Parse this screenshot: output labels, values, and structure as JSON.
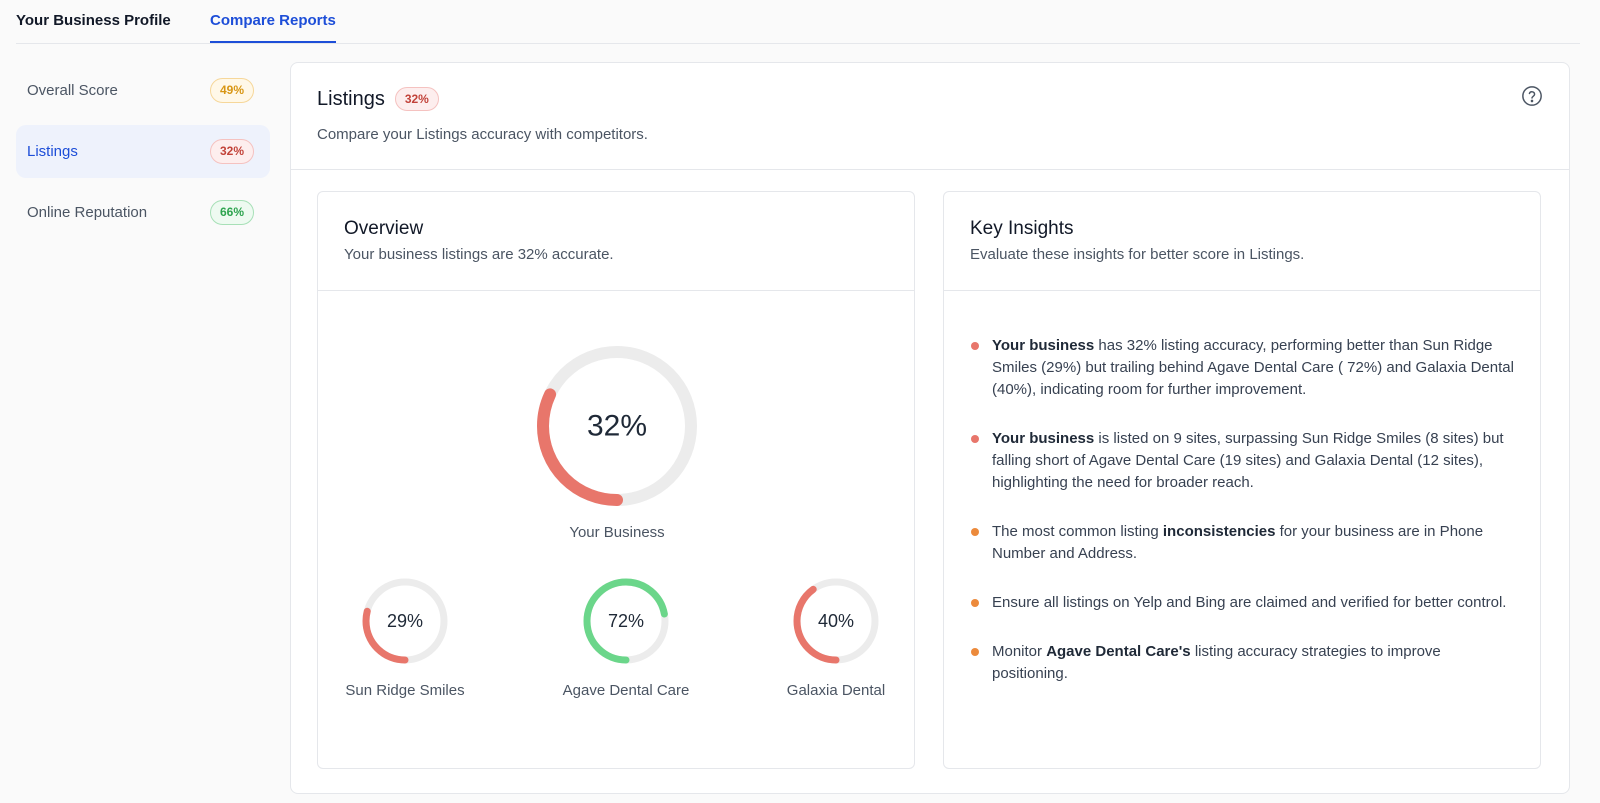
{
  "topnav": {
    "tabs": [
      {
        "label": "Your Business Profile",
        "active": false
      },
      {
        "label": "Compare Reports",
        "active": true
      }
    ]
  },
  "sidebar": {
    "items": [
      {
        "label": "Overall Score",
        "badge": "49%",
        "color": "orange",
        "active": false
      },
      {
        "label": "Listings",
        "badge": "32%",
        "color": "red",
        "active": true
      },
      {
        "label": "Online Reputation",
        "badge": "66%",
        "color": "green",
        "active": false
      }
    ]
  },
  "main": {
    "title": "Listings",
    "badge": "32%",
    "subtitle": "Compare your Listings accuracy with competitors.",
    "help_icon": "question-circle-icon"
  },
  "overview": {
    "title": "Overview",
    "subtitle": "Your business listings are 32% accurate.",
    "primary": {
      "name": "Your Business",
      "value": 32,
      "label": "32%",
      "color": "#e8766b"
    },
    "competitors": [
      {
        "name": "Sun Ridge Smiles",
        "value": 29,
        "label": "29%",
        "color": "#e8766b"
      },
      {
        "name": "Agave Dental Care",
        "value": 72,
        "label": "72%",
        "color": "#6bd68a"
      },
      {
        "name": "Galaxia Dental",
        "value": 40,
        "label": "40%",
        "color": "#e8766b"
      }
    ],
    "track_color": "#ececec"
  },
  "insights": {
    "title": "Key Insights",
    "subtitle": "Evaluate these insights for better score in Listings.",
    "items": [
      {
        "dot": "#e8766b",
        "bold": "Your business",
        "pre": "",
        "post": " has 32% listing accuracy, performing better than Sun Ridge Smiles (29%) but trailing behind Agave Dental Care ( 72%) and Galaxia Dental (40%), indicating room for further improvement."
      },
      {
        "dot": "#e8766b",
        "bold": "Your business",
        "pre": "",
        "post": " is listed on 9 sites, surpassing Sun Ridge Smiles (8 sites) but falling short of Agave Dental Care (19 sites) and Galaxia Dental (12 sites), highlighting the need for broader reach."
      },
      {
        "dot": "#ec8a3c",
        "bold": "inconsistencies",
        "pre": "The most common listing ",
        "post": " for your business are in Phone Number and Address."
      },
      {
        "dot": "#ec8a3c",
        "bold": "",
        "pre": "Ensure all listings on Yelp and Bing are claimed and verified for better control.",
        "post": ""
      },
      {
        "dot": "#ec8a3c",
        "bold": "Agave Dental Care's",
        "pre": "Monitor ",
        "post": " listing accuracy strategies to improve positioning."
      }
    ]
  }
}
